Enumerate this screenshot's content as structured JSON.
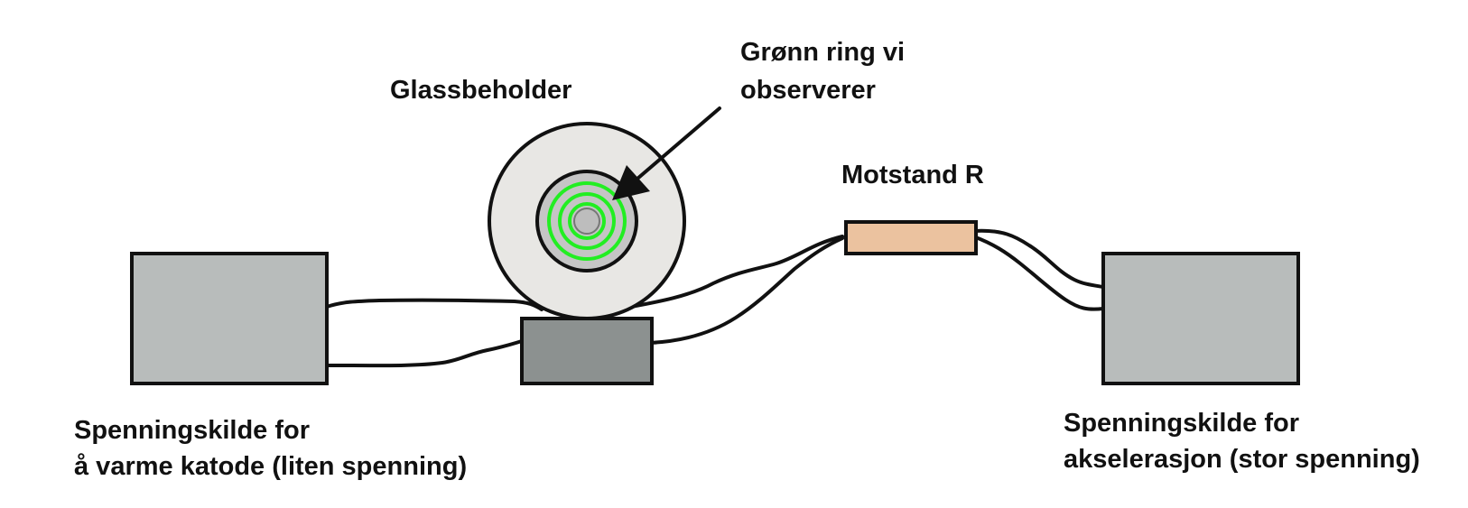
{
  "labels": {
    "container": "Glassbeholder",
    "ring_line1": "Grønn ring vi",
    "ring_line2": "observerer",
    "resistor": "Motstand R",
    "left_source_line1": "Spenningskilde for",
    "left_source_line2": "å varme katode (liten spenning)",
    "right_source_line1": "Spenningskilde for",
    "right_source_line2": "akselerasjon (stor spenning)"
  },
  "colors": {
    "source_fill": "#b8bcbb",
    "base_fill": "#8c9190",
    "glass_fill": "#e8e7e4",
    "tube_fill": "#c5c5c5",
    "ring_green": "#22ee22",
    "resistor_fill": "#ebc29f",
    "stroke": "#111111"
  }
}
